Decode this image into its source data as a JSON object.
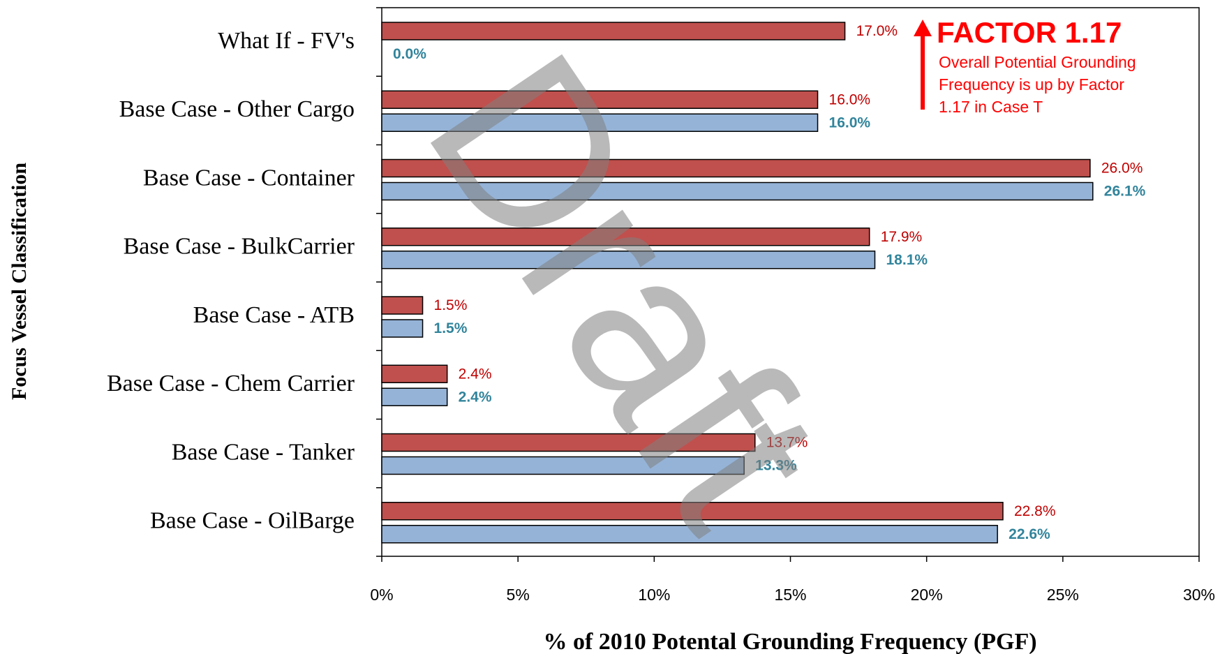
{
  "chart_data": {
    "type": "bar",
    "orientation": "horizontal",
    "y_axis_label": "Focus Vessel Classification",
    "x_axis_label": "% of 2010 Potental Grounding Frequency (PGF)",
    "categories": [
      "What If - FV's",
      "Base Case - Other Cargo",
      "Base Case - Container",
      "Base Case - BulkCarrier",
      "Base  Case - ATB",
      "Base Case - Chem Carrier",
      "Base Case - Tanker",
      "Base Case - OilBarge"
    ],
    "series": [
      {
        "color": "#c0504d",
        "label_color": "#c00000",
        "label_bold": false,
        "values": [
          17.0,
          16.0,
          26.0,
          17.9,
          1.5,
          2.4,
          13.7,
          22.8
        ],
        "value_labels": [
          "17.0%",
          "16.0%",
          "26.0%",
          "17.9%",
          "1.5%",
          "2.4%",
          "13.7%",
          "22.8%"
        ]
      },
      {
        "color": "#95b3d7",
        "label_color": "#31849b",
        "label_bold": true,
        "values": [
          0.0,
          16.0,
          26.1,
          18.1,
          1.5,
          2.4,
          13.3,
          22.6
        ],
        "value_labels": [
          "0.0%",
          "16.0%",
          "26.1%",
          "18.1%",
          "1.5%",
          "2.4%",
          "13.3%",
          "22.6%"
        ]
      }
    ],
    "xlim": [
      0,
      30
    ],
    "xticks": [
      {
        "value": 0,
        "label": "0%"
      },
      {
        "value": 5,
        "label": "5%"
      },
      {
        "value": 10,
        "label": "10%"
      },
      {
        "value": 15,
        "label": "15%"
      },
      {
        "value": 20,
        "label": "20%"
      },
      {
        "value": 25,
        "label": "25%"
      },
      {
        "value": 30,
        "label": "30%"
      }
    ],
    "annotation": {
      "title": "FACTOR 1.17",
      "lines": [
        "Overall Potential Grounding",
        "Frequency is up by Factor",
        "1.17 in Case T"
      ]
    },
    "watermark": "Draft"
  }
}
